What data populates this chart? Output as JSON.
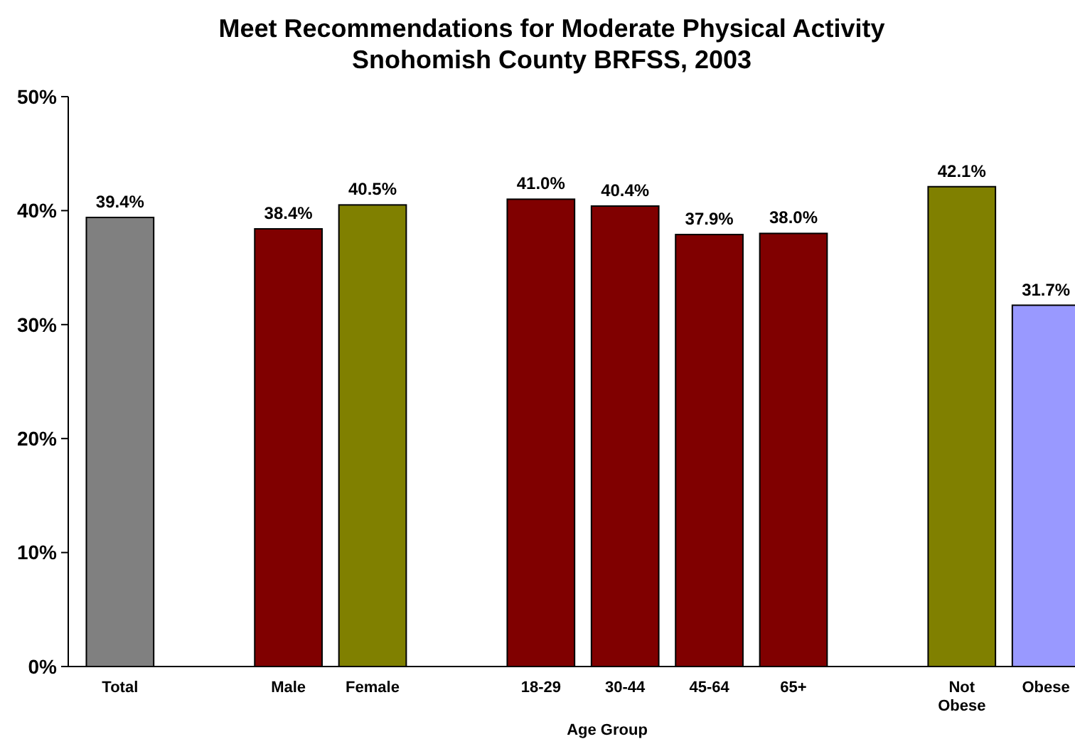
{
  "chart_data": {
    "type": "bar",
    "title": "Meet Recommendations for Moderate Physical Activity\nSnohomish County BRFSS, 2003",
    "xlabel": "Age Group",
    "categories": [
      "Total",
      null,
      "Male",
      "Female",
      null,
      "18-29",
      "30-44",
      "45-64",
      "65+",
      null,
      "Not Obese",
      "Obese"
    ],
    "values": [
      39.4,
      null,
      38.4,
      40.5,
      null,
      41.0,
      40.4,
      37.9,
      38.0,
      null,
      42.1,
      31.7
    ],
    "value_labels": [
      "39.4%",
      null,
      "38.4%",
      "40.5%",
      null,
      "41.0%",
      "40.4%",
      "37.9%",
      "38.0%",
      null,
      "42.1%",
      "31.7%"
    ],
    "colors": [
      "#808080",
      null,
      "#800000",
      "#808000",
      null,
      "#800000",
      "#800000",
      "#800000",
      "#800000",
      null,
      "#808000",
      "#9999ff"
    ],
    "ylim": [
      0,
      50
    ],
    "yticks": [
      {
        "value": 0,
        "label": "0%"
      },
      {
        "value": 10,
        "label": "10%"
      },
      {
        "value": 20,
        "label": "20%"
      },
      {
        "value": 30,
        "label": "30%"
      },
      {
        "value": 40,
        "label": "40%"
      },
      {
        "value": 50,
        "label": "50%"
      }
    ],
    "grid": false
  }
}
